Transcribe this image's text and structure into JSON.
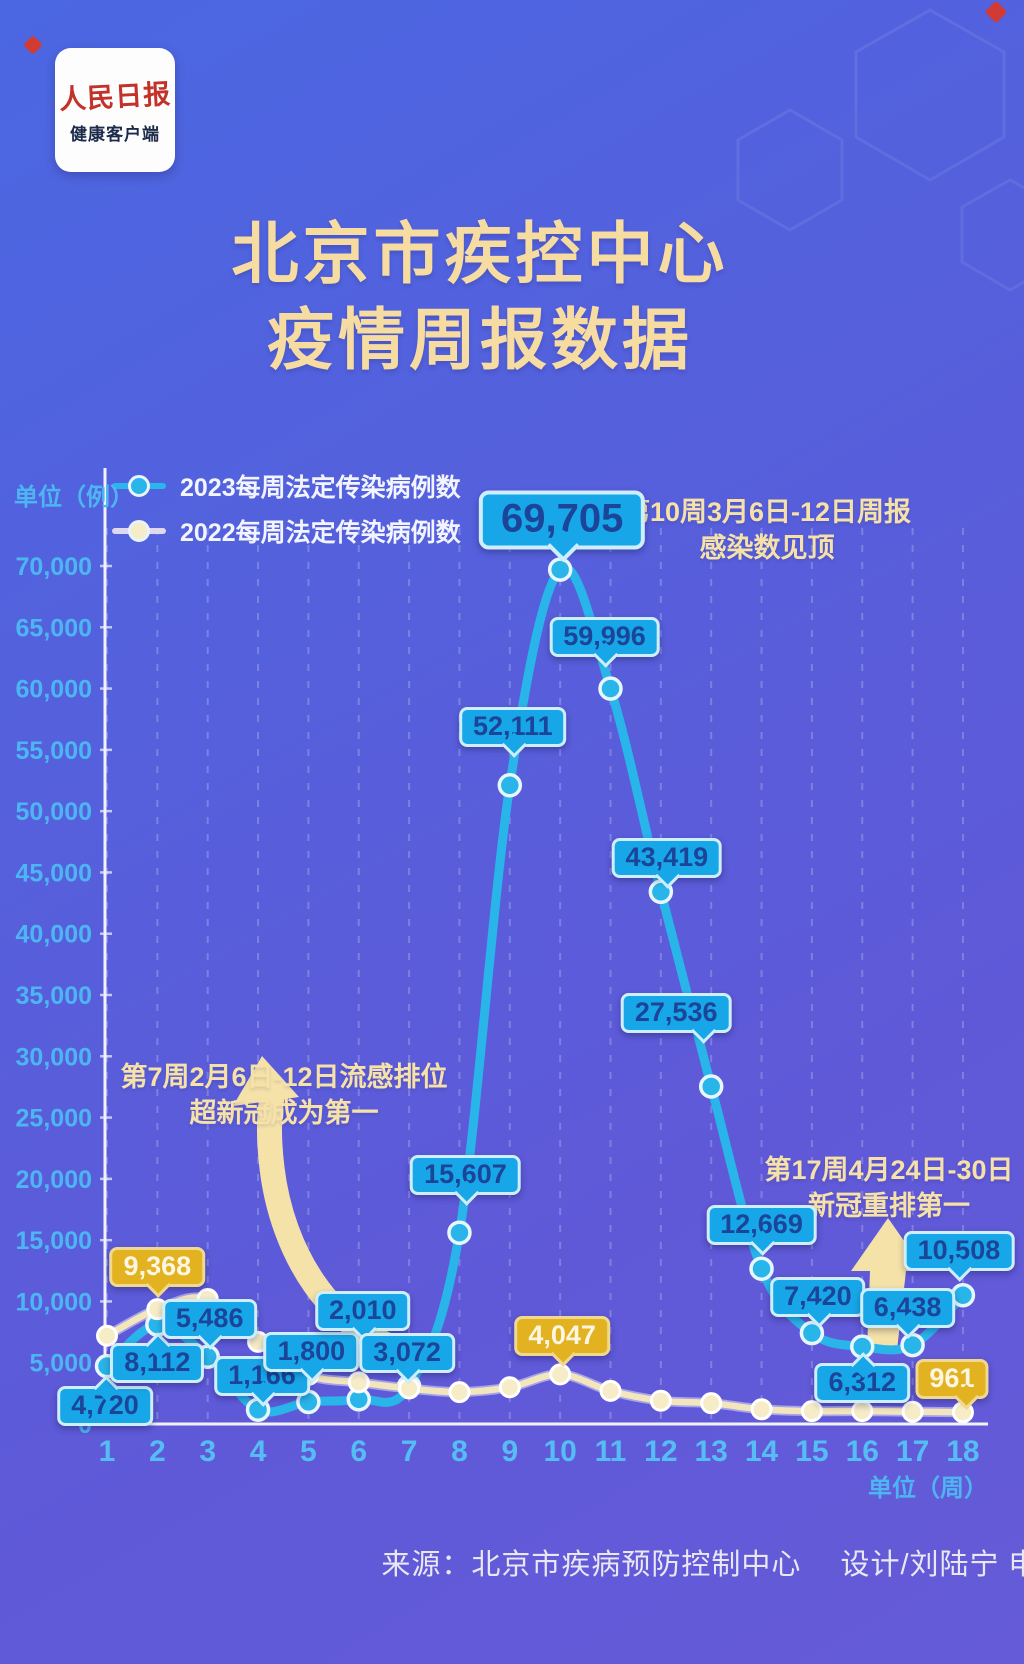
{
  "brand": {
    "masthead": "人民日报",
    "sub": "健康客户端"
  },
  "title": {
    "line1": "北京市疾控中心",
    "line2": "疫情周报数据"
  },
  "legend": [
    {
      "label": "2023每周法定传染病例数",
      "color": "#2ab5ec"
    },
    {
      "label": "2022每周法定传染病例数",
      "color": "#ded9ee"
    }
  ],
  "annotations": {
    "peak": {
      "line1": "第10周3月6日-12日周报",
      "line2": "感染数见顶"
    },
    "flu": {
      "line1": "第7周2月6日-12日流感排位",
      "line2": "超新冠成为第一"
    },
    "covid": {
      "line1": "第17周4月24日-30日",
      "line2": "新冠重排第一"
    }
  },
  "source": {
    "text": "来源：北京市疾病预防控制中心　 设计/刘陆宁 申嘉雨"
  },
  "chart_data": {
    "type": "line",
    "y_label": "单位（例）",
    "x_unit": "单位（周）",
    "x": [
      1,
      2,
      3,
      4,
      5,
      6,
      7,
      8,
      9,
      10,
      11,
      12,
      13,
      14,
      15,
      16,
      17,
      18
    ],
    "ylim": [
      0,
      70000
    ],
    "y_tick_step": 5000,
    "y_tick_labels": [
      "0",
      "5,000",
      "10,000",
      "15,000",
      "20,000",
      "25,000",
      "30,000",
      "35,000",
      "40,000",
      "45,000",
      "50,000",
      "55,000",
      "60,000",
      "65,000",
      "70,000"
    ],
    "grid": "vertical-dashed",
    "legend_position": "top-left",
    "series": [
      {
        "name": "2023每周法定传染病例数",
        "color": "#29b4ea",
        "marker_fill": "#29b4ea",
        "label_style": "cyan",
        "values": [
          4720,
          8112,
          5486,
          1166,
          1800,
          2010,
          3072,
          15607,
          52111,
          69705,
          59996,
          43419,
          27536,
          12669,
          7420,
          6312,
          6438,
          10508
        ],
        "labels": [
          {
            "week": 1,
            "text": "4,720",
            "dx": -2,
            "dy": 40,
            "ptr": "up"
          },
          {
            "week": 2,
            "text": "8,112",
            "dx": 0,
            "dy": 38,
            "ptr": "up"
          },
          {
            "week": 3,
            "text": "5,486",
            "dx": 2,
            "dy": -38,
            "ptr": "down"
          },
          {
            "week": 4,
            "text": "1,166",
            "dx": 4,
            "dy": -34,
            "ptr": "down"
          },
          {
            "week": 5,
            "text": "1,800",
            "dx": 3,
            "dy": -50,
            "ptr": "down"
          },
          {
            "week": 6,
            "text": "2,010",
            "dx": 4,
            "dy": -88,
            "ptr": "down"
          },
          {
            "week": 7,
            "text": "3,072",
            "dx": -2,
            "dy": -33,
            "ptr": "down"
          },
          {
            "week": 8,
            "text": "15,607",
            "dx": 6,
            "dy": -58,
            "ptr": "down"
          },
          {
            "week": 9,
            "text": "52,111",
            "dx": 3,
            "dy": -58,
            "ptr": "down"
          },
          {
            "week": 10,
            "text": "69,705",
            "dx": 2,
            "dy": -50,
            "ptr": "down",
            "big": true
          },
          {
            "week": 11,
            "text": "59,996",
            "dx": -6,
            "dy": -52,
            "ptr": "down"
          },
          {
            "week": 12,
            "text": "43,419",
            "dx": 6,
            "dy": -34,
            "ptr": "down"
          },
          {
            "week": 13,
            "text": "27,536",
            "dx": -35,
            "dy": -73,
            "ptr": "down",
            "pp": 75
          },
          {
            "week": 14,
            "text": "12,669",
            "dx": 0,
            "dy": -44,
            "ptr": "down"
          },
          {
            "week": 15,
            "text": "7,420",
            "dx": 6,
            "dy": -36,
            "ptr": "down"
          },
          {
            "week": 16,
            "text": "6,312",
            "dx": 0,
            "dy": 36,
            "ptr": "up"
          },
          {
            "week": 17,
            "text": "6,438",
            "dx": -5,
            "dy": -37,
            "ptr": "down"
          },
          {
            "week": 18,
            "text": "10,508",
            "dx": -4,
            "dy": -44,
            "ptr": "down"
          }
        ]
      },
      {
        "name": "2022每周法定传染病例数",
        "color": "#f3e6bd",
        "marker_fill": "#f6ecc8",
        "label_style": "gold",
        "values": [
          7200,
          9368,
          10200,
          6700,
          4000,
          3400,
          2900,
          2600,
          3000,
          4047,
          2700,
          1900,
          1700,
          1200,
          1050,
          1050,
          1000,
          961
        ],
        "labeled_values_note": "only weeks 2, 10, 18 carry data labels in the figure; other 2022 values estimated from pixel positions",
        "labels": [
          {
            "week": 2,
            "text": "9,368",
            "dx": 0,
            "dy": -42,
            "ptr": "down",
            "style": "gold"
          },
          {
            "week": 10,
            "text": "4,047",
            "dx": 2,
            "dy": -38,
            "ptr": "down",
            "style": "gold"
          },
          {
            "week": 18,
            "text": "961",
            "dx": -11,
            "dy": -33,
            "ptr": "down",
            "style": "gold",
            "pp": 70
          }
        ]
      }
    ]
  }
}
